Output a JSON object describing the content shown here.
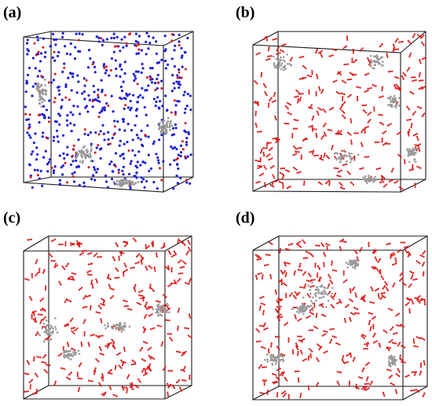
{
  "figure": {
    "panels": [
      {
        "id": "a",
        "label": "(a)",
        "particle_colors": [
          "#1f1fd6",
          "#e01414",
          "#9a9a9a"
        ]
      },
      {
        "id": "b",
        "label": "(b)",
        "particle_colors": [
          "#d81818",
          "#9a9a9a"
        ]
      },
      {
        "id": "c",
        "label": "(c)",
        "particle_colors": [
          "#d81818",
          "#9a9a9a"
        ]
      },
      {
        "id": "d",
        "label": "(d)",
        "particle_colors": [
          "#d81818",
          "#9a9a9a"
        ]
      }
    ]
  }
}
